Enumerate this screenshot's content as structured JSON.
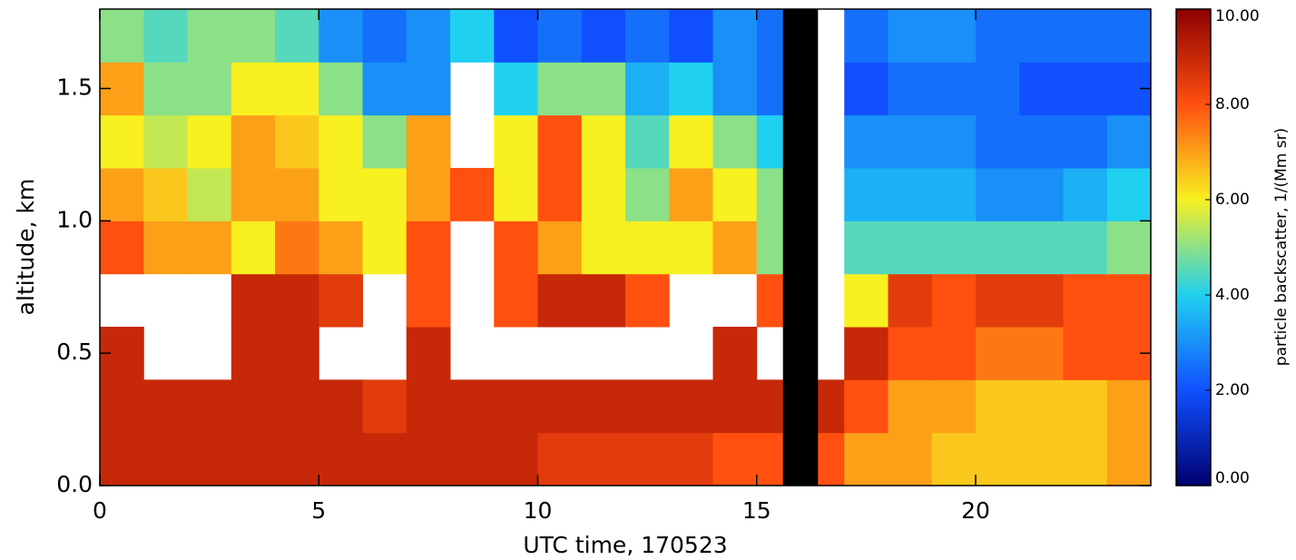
{
  "chart_data": {
    "type": "heatmap",
    "xlabel": "UTC time, 170523",
    "ylabel": "altitude, km",
    "colorbar_label": "particle backscatter, 1/(Mm sr)",
    "xlim": [
      0,
      24
    ],
    "xticks": [
      0,
      5,
      10,
      15,
      20
    ],
    "ylim": [
      0,
      1.8
    ],
    "yticks": [
      {
        "value": 0,
        "label": "0.0"
      },
      0.5,
      {
        "value": 1,
        "label": "1.0"
      },
      1.5
    ],
    "zlim": [
      0,
      10
    ],
    "zticks": [
      {
        "value": 0,
        "label": "0.00"
      },
      {
        "value": 2,
        "label": "2.00"
      },
      {
        "value": 4,
        "label": "4.00"
      },
      {
        "value": 6,
        "label": "6.00"
      },
      {
        "value": 8,
        "label": "8.00"
      },
      {
        "value": 10,
        "label": "10.00"
      }
    ],
    "colormap": [
      "#000070",
      "#1050ff",
      "#20d0f0",
      "#f8f020",
      "#ff5010",
      "#8c0000"
    ],
    "gap": [
      15.6,
      16.4
    ],
    "gap_color": "#000000",
    "xbins": [
      0,
      1,
      2,
      3,
      4,
      5,
      6,
      7,
      8,
      9,
      10,
      11,
      12,
      13,
      14,
      15,
      16,
      17,
      18,
      19,
      20,
      21,
      22,
      23,
      24
    ],
    "ybins": [
      0,
      0.2,
      0.4,
      0.6,
      0.8,
      1.0,
      1.2,
      1.4,
      1.6,
      1.8
    ],
    "values": [
      [
        9,
        9,
        9,
        9,
        9,
        9,
        9,
        9,
        9,
        9,
        8.5,
        8.5,
        8.5,
        8.5,
        8,
        8,
        8,
        7,
        7,
        6.5,
        6.5,
        6.5,
        6.5,
        7
      ],
      [
        9,
        9,
        9,
        9,
        9,
        9,
        8.5,
        9,
        9,
        9,
        9,
        9,
        9,
        9,
        9,
        9,
        9,
        8,
        7,
        7,
        6.5,
        6.5,
        6.5,
        7
      ],
      [
        9,
        null,
        null,
        9,
        9,
        null,
        null,
        9,
        null,
        null,
        null,
        null,
        null,
        null,
        9,
        null,
        null,
        9,
        8,
        8,
        7.5,
        7.5,
        8,
        8
      ],
      [
        null,
        null,
        null,
        9,
        9,
        8.5,
        null,
        8,
        null,
        8,
        9,
        9,
        8,
        null,
        null,
        8,
        null,
        6,
        8.5,
        8,
        8.5,
        8.5,
        8,
        8
      ],
      [
        8,
        7,
        7,
        6,
        7.5,
        7,
        6,
        8,
        null,
        8,
        7,
        6,
        6,
        6,
        7,
        5,
        null,
        4.5,
        4.5,
        4.5,
        4.5,
        4.5,
        4.5,
        5
      ],
      [
        7,
        6.5,
        5.5,
        7,
        7,
        6,
        6,
        7,
        8,
        6,
        8,
        6,
        5,
        7,
        6,
        5,
        null,
        3.5,
        3.5,
        3.5,
        3,
        3,
        3.5,
        4
      ],
      [
        6,
        5.5,
        6,
        7,
        6.5,
        6,
        5,
        7,
        null,
        6,
        8,
        6,
        4.5,
        6,
        5,
        4,
        null,
        3,
        3,
        3,
        2.5,
        2.5,
        2.5,
        3
      ],
      [
        7,
        5,
        5,
        6,
        6,
        5,
        3,
        3,
        null,
        4,
        5,
        5,
        3.5,
        4,
        3,
        2.5,
        null,
        2,
        2.5,
        2.5,
        2.5,
        2,
        2,
        2
      ],
      [
        5,
        4.5,
        5,
        5,
        4.5,
        3,
        2.5,
        3,
        4,
        2,
        2.5,
        2,
        2.5,
        2,
        3,
        2.5,
        null,
        2.5,
        3,
        3,
        2.5,
        2.5,
        2.5,
        2.5
      ]
    ]
  }
}
